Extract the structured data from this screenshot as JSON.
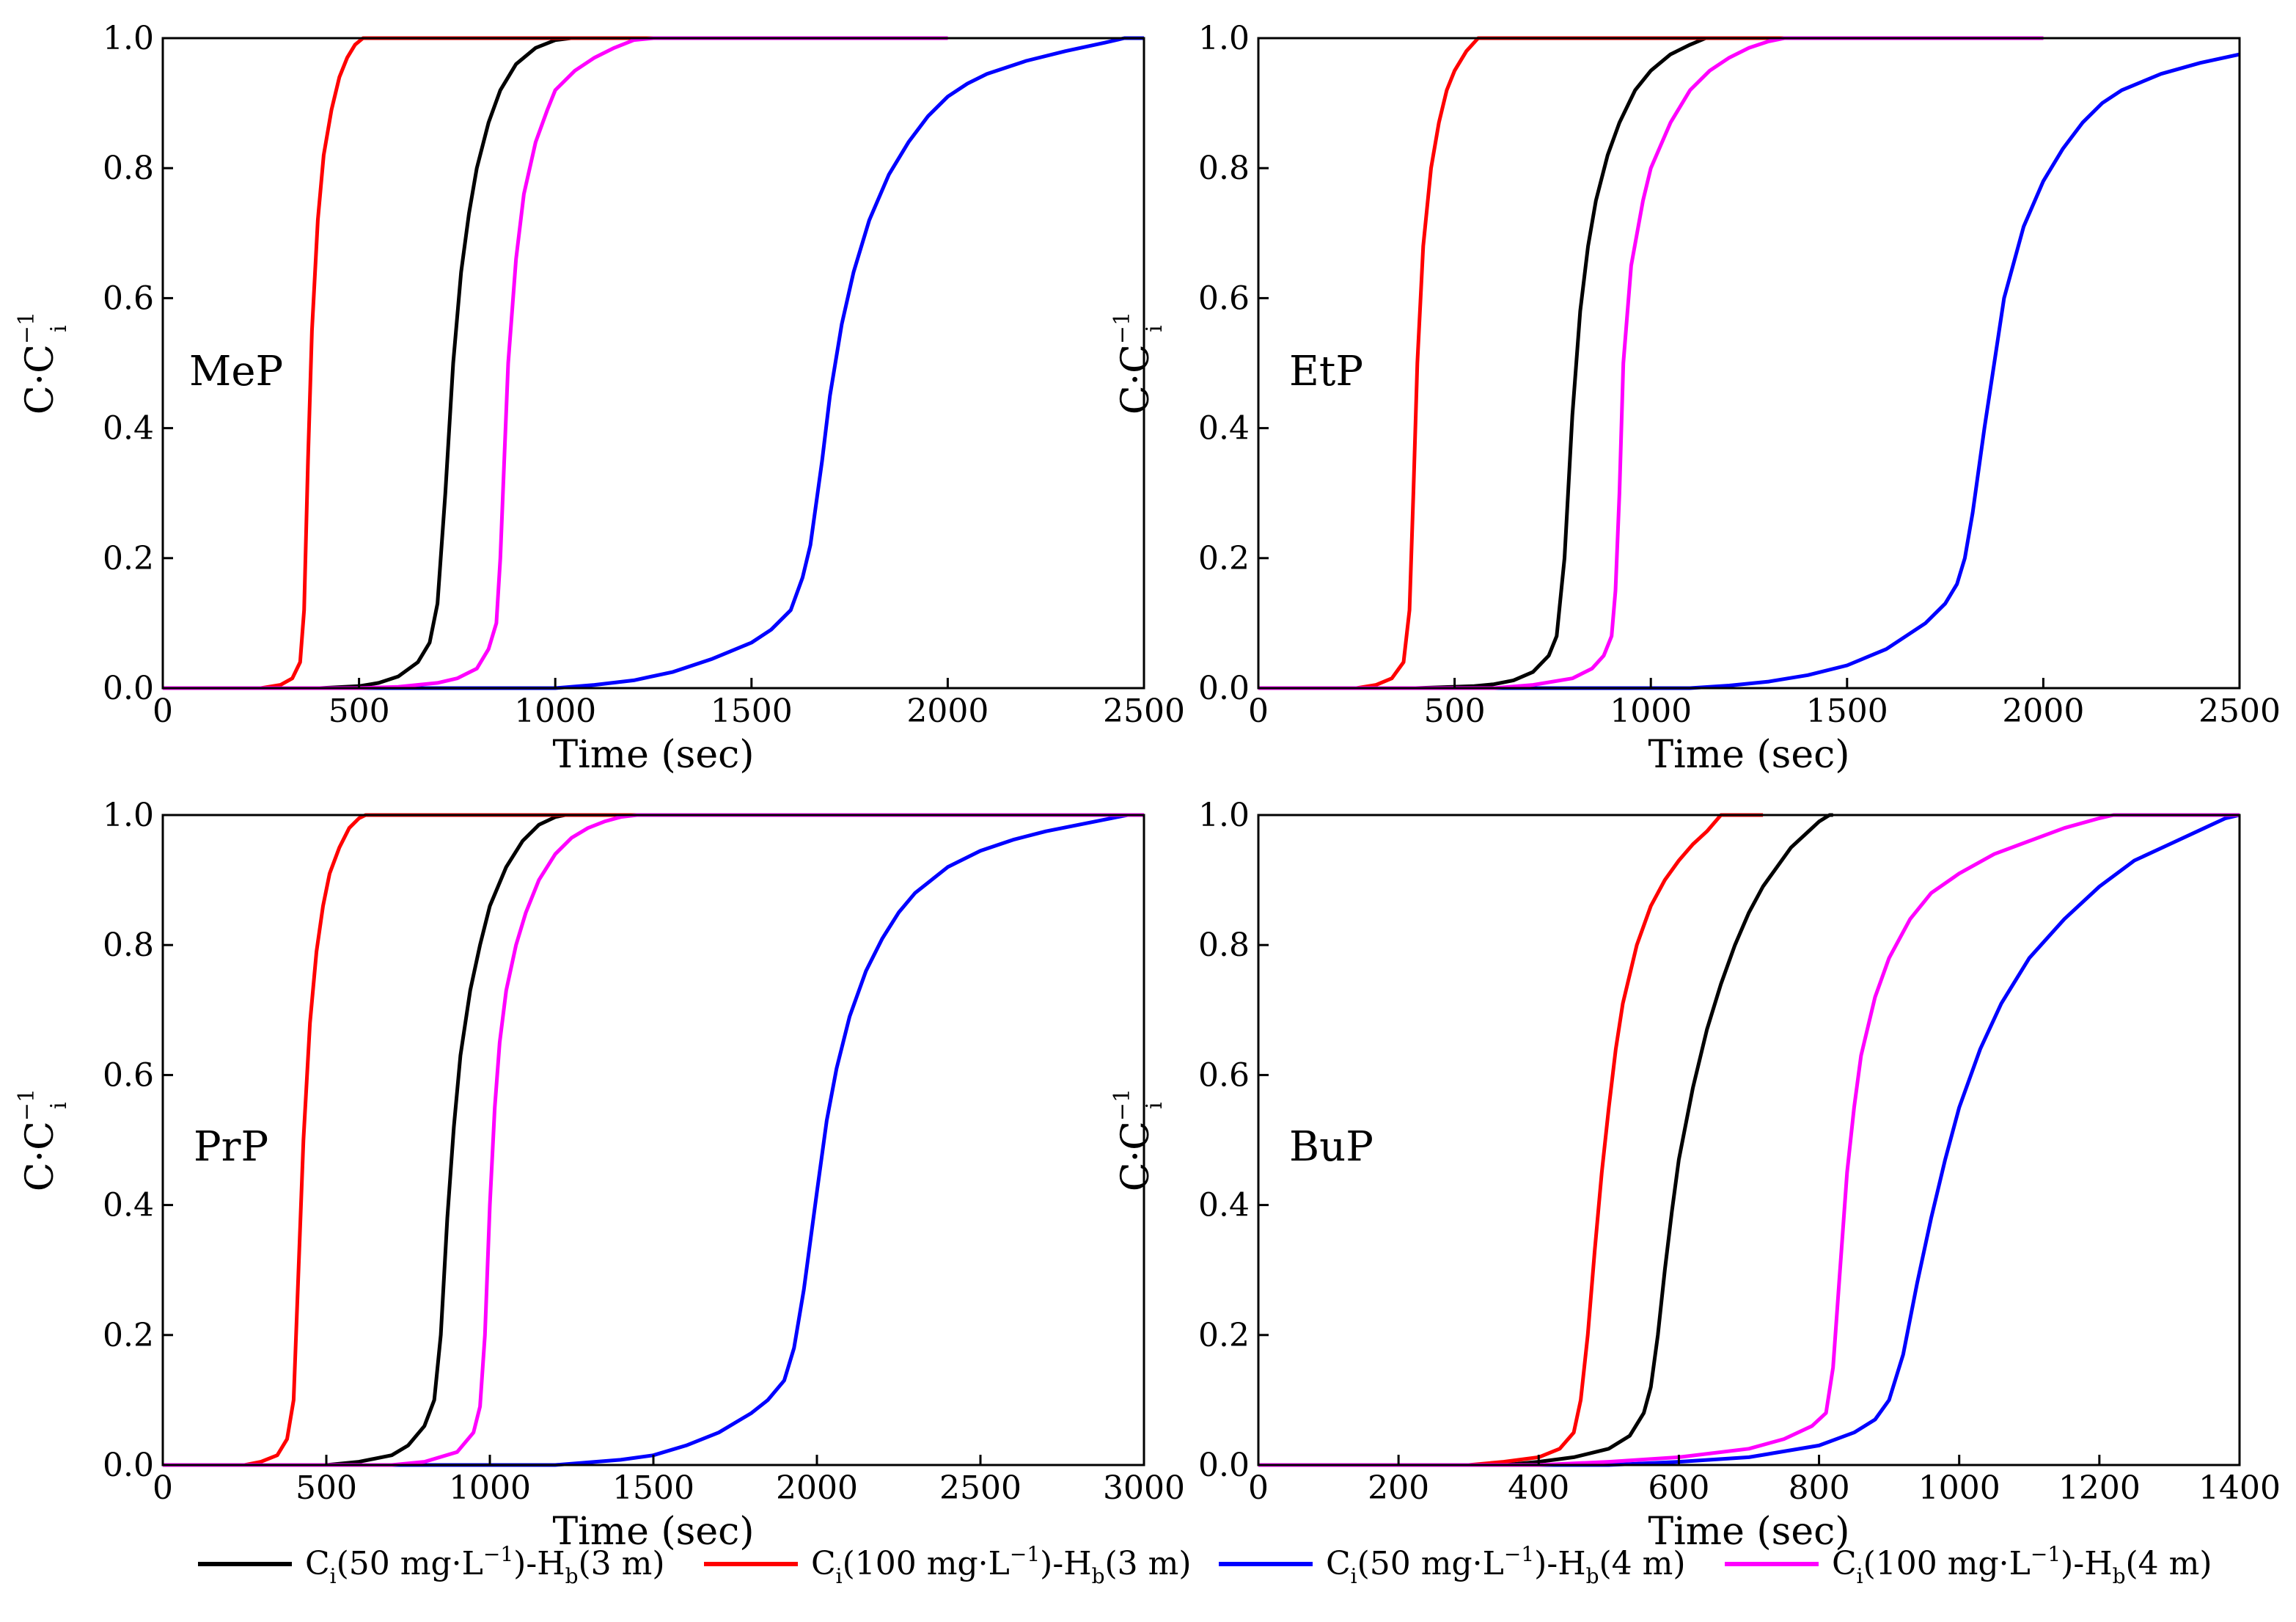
{
  "figure": {
    "colors": {
      "ci50_hb3": "#000000",
      "ci100_hb3": "#ff0000",
      "ci50_hb4": "#0000ff",
      "ci100_hb4": "#ff00ff"
    }
  },
  "chart_data": [
    {
      "type": "line",
      "panel_label": "MeP",
      "xlabel": "Time (sec)",
      "ylabel": "C·C_i^-1",
      "xlim": [
        0,
        2500
      ],
      "ylim": [
        0.0,
        1.0
      ],
      "xticks": [
        0,
        500,
        1000,
        1500,
        2000,
        2500
      ],
      "yticks": [
        "0.0",
        "0.2",
        "0.4",
        "0.6",
        "0.8",
        "1.0"
      ],
      "grid": false,
      "series": [
        {
          "name": "Ci(50 mg·L⁻¹)-Hb(3 m)",
          "color": "#000000",
          "x": [
            0,
            400,
            500,
            550,
            600,
            650,
            680,
            700,
            720,
            740,
            760,
            780,
            800,
            830,
            860,
            900,
            950,
            1000,
            1040,
            1100
          ],
          "y": [
            0,
            0,
            0.003,
            0.008,
            0.018,
            0.04,
            0.07,
            0.13,
            0.3,
            0.5,
            0.64,
            0.73,
            0.8,
            0.87,
            0.92,
            0.96,
            0.985,
            0.997,
            1,
            1
          ]
        },
        {
          "name": "Ci(100 mg·L⁻¹)-Hb(3 m)",
          "color": "#ff0000",
          "x": [
            0,
            250,
            300,
            330,
            350,
            360,
            370,
            380,
            395,
            410,
            430,
            450,
            470,
            490,
            510,
            520,
            2000
          ],
          "y": [
            0,
            0,
            0.005,
            0.015,
            0.04,
            0.12,
            0.35,
            0.55,
            0.72,
            0.82,
            0.89,
            0.94,
            0.97,
            0.99,
            1,
            1,
            1
          ]
        },
        {
          "name": "Ci(50 mg·L⁻¹)-Hb(4 m)",
          "color": "#0000ff",
          "x": [
            0,
            1000,
            1100,
            1200,
            1300,
            1400,
            1500,
            1550,
            1600,
            1630,
            1650,
            1680,
            1700,
            1730,
            1760,
            1800,
            1850,
            1900,
            1950,
            2000,
            2050,
            2100,
            2150,
            2200,
            2300,
            2400,
            2450,
            2500
          ],
          "y": [
            0,
            0,
            0.005,
            0.012,
            0.025,
            0.045,
            0.07,
            0.09,
            0.12,
            0.17,
            0.22,
            0.35,
            0.45,
            0.56,
            0.64,
            0.72,
            0.79,
            0.84,
            0.88,
            0.91,
            0.93,
            0.945,
            0.955,
            0.965,
            0.98,
            0.993,
            1,
            1
          ]
        },
        {
          "name": "Ci(100 mg·L⁻¹)-Hb(4 m)",
          "color": "#ff00ff",
          "x": [
            0,
            500,
            600,
            700,
            750,
            800,
            830,
            850,
            860,
            870,
            880,
            900,
            920,
            950,
            980,
            1000,
            1050,
            1100,
            1150,
            1200,
            1250,
            2000
          ],
          "y": [
            0,
            0,
            0.002,
            0.008,
            0.015,
            0.03,
            0.06,
            0.1,
            0.2,
            0.35,
            0.5,
            0.66,
            0.76,
            0.84,
            0.89,
            0.92,
            0.95,
            0.97,
            0.985,
            0.997,
            1,
            1
          ]
        }
      ]
    },
    {
      "type": "line",
      "panel_label": "EtP",
      "xlabel": "Time (sec)",
      "ylabel": "C·C_i^-1",
      "xlim": [
        0,
        2500
      ],
      "ylim": [
        0.0,
        1.0
      ],
      "xticks": [
        0,
        500,
        1000,
        1500,
        2000,
        2500
      ],
      "yticks": [
        "0.0",
        "0.2",
        "0.4",
        "0.6",
        "0.8",
        "1.0"
      ],
      "grid": false,
      "series": [
        {
          "name": "Ci(50 mg·L⁻¹)-Hb(3 m)",
          "color": "#000000",
          "x": [
            0,
            400,
            550,
            600,
            650,
            700,
            740,
            760,
            780,
            800,
            820,
            840,
            860,
            890,
            920,
            960,
            1000,
            1050,
            1100,
            1140,
            1200
          ],
          "y": [
            0,
            0,
            0.003,
            0.006,
            0.012,
            0.025,
            0.05,
            0.08,
            0.2,
            0.42,
            0.58,
            0.68,
            0.75,
            0.82,
            0.87,
            0.92,
            0.95,
            0.975,
            0.99,
            1,
            1
          ]
        },
        {
          "name": "Ci(100 mg·L⁻¹)-Hb(3 m)",
          "color": "#ff0000",
          "x": [
            0,
            250,
            300,
            340,
            370,
            385,
            395,
            405,
            420,
            440,
            460,
            480,
            500,
            530,
            560,
            570,
            2000
          ],
          "y": [
            0,
            0,
            0.005,
            0.015,
            0.04,
            0.12,
            0.3,
            0.5,
            0.68,
            0.8,
            0.87,
            0.92,
            0.95,
            0.98,
            1,
            1,
            1
          ]
        },
        {
          "name": "Ci(50 mg·L⁻¹)-Hb(4 m)",
          "color": "#0000ff",
          "x": [
            0,
            1100,
            1200,
            1300,
            1400,
            1500,
            1600,
            1700,
            1750,
            1780,
            1800,
            1820,
            1850,
            1880,
            1900,
            1950,
            2000,
            2050,
            2100,
            2150,
            2200,
            2300,
            2400,
            2500
          ],
          "y": [
            0,
            0,
            0.004,
            0.01,
            0.02,
            0.035,
            0.06,
            0.1,
            0.13,
            0.16,
            0.2,
            0.27,
            0.4,
            0.52,
            0.6,
            0.71,
            0.78,
            0.83,
            0.87,
            0.9,
            0.92,
            0.945,
            0.962,
            0.975
          ]
        },
        {
          "name": "Ci(100 mg·L⁻¹)-Hb(4 m)",
          "color": "#ff00ff",
          "x": [
            0,
            600,
            700,
            800,
            850,
            880,
            900,
            910,
            920,
            930,
            950,
            980,
            1000,
            1050,
            1100,
            1150,
            1200,
            1250,
            1300,
            1340,
            2000
          ],
          "y": [
            0,
            0,
            0.005,
            0.015,
            0.03,
            0.05,
            0.08,
            0.15,
            0.3,
            0.5,
            0.65,
            0.75,
            0.8,
            0.87,
            0.92,
            0.95,
            0.97,
            0.985,
            0.995,
            1,
            1
          ]
        }
      ]
    },
    {
      "type": "line",
      "panel_label": "PrP",
      "xlabel": "Time (sec)",
      "ylabel": "C·C_i^-1",
      "xlim": [
        0,
        3000
      ],
      "ylim": [
        0.0,
        1.0
      ],
      "xticks": [
        0,
        500,
        1000,
        1500,
        2000,
        2500,
        3000
      ],
      "yticks": [
        "0.0",
        "0.2",
        "0.4",
        "0.6",
        "0.8",
        "1.0"
      ],
      "grid": false,
      "series": [
        {
          "name": "Ci(50 mg·L⁻¹)-Hb(3 m)",
          "color": "#000000",
          "x": [
            0,
            500,
            600,
            700,
            750,
            800,
            830,
            850,
            870,
            890,
            910,
            940,
            970,
            1000,
            1050,
            1100,
            1150,
            1200,
            1230,
            1300
          ],
          "y": [
            0,
            0,
            0.005,
            0.015,
            0.03,
            0.06,
            0.1,
            0.2,
            0.38,
            0.52,
            0.63,
            0.73,
            0.8,
            0.86,
            0.92,
            0.96,
            0.985,
            0.997,
            1,
            1
          ]
        },
        {
          "name": "Ci(100 mg·L⁻¹)-Hb(3 m)",
          "color": "#ff0000",
          "x": [
            0,
            250,
            300,
            350,
            380,
            400,
            415,
            430,
            450,
            470,
            490,
            510,
            540,
            570,
            600,
            620,
            3000
          ],
          "y": [
            0,
            0,
            0.005,
            0.015,
            0.04,
            0.1,
            0.3,
            0.5,
            0.68,
            0.79,
            0.86,
            0.91,
            0.95,
            0.98,
            0.995,
            1,
            1
          ]
        },
        {
          "name": "Ci(50 mg·L⁻¹)-Hb(4 m)",
          "color": "#0000ff",
          "x": [
            0,
            1200,
            1400,
            1500,
            1600,
            1700,
            1800,
            1850,
            1900,
            1930,
            1960,
            2000,
            2030,
            2060,
            2100,
            2150,
            2200,
            2250,
            2300,
            2400,
            2500,
            2600,
            2700,
            2800,
            2900,
            2950,
            3000
          ],
          "y": [
            0,
            0,
            0.008,
            0.015,
            0.03,
            0.05,
            0.08,
            0.1,
            0.13,
            0.18,
            0.27,
            0.42,
            0.53,
            0.61,
            0.69,
            0.76,
            0.81,
            0.85,
            0.88,
            0.92,
            0.945,
            0.962,
            0.975,
            0.985,
            0.995,
            1,
            1
          ]
        },
        {
          "name": "Ci(100 mg·L⁻¹)-Hb(4 m)",
          "color": "#ff00ff",
          "x": [
            0,
            700,
            800,
            900,
            950,
            970,
            985,
            1000,
            1015,
            1030,
            1050,
            1080,
            1110,
            1150,
            1200,
            1250,
            1300,
            1350,
            1400,
            1450,
            3000
          ],
          "y": [
            0,
            0,
            0.005,
            0.02,
            0.05,
            0.09,
            0.2,
            0.4,
            0.55,
            0.65,
            0.73,
            0.8,
            0.85,
            0.9,
            0.94,
            0.965,
            0.98,
            0.99,
            0.997,
            1,
            1
          ]
        }
      ]
    },
    {
      "type": "line",
      "panel_label": "BuP",
      "xlabel": "Time (sec)",
      "ylabel": "C·C_i^-1",
      "xlim": [
        0,
        1400
      ],
      "ylim": [
        0.0,
        1.0
      ],
      "xticks": [
        0,
        200,
        400,
        600,
        800,
        1000,
        1200,
        1400
      ],
      "yticks": [
        "0.0",
        "0.2",
        "0.4",
        "0.6",
        "0.8",
        "1.0"
      ],
      "grid": false,
      "series": [
        {
          "name": "Ci(50 mg·L⁻¹)-Hb(3 m)",
          "color": "#000000",
          "x": [
            0,
            350,
            400,
            450,
            500,
            530,
            550,
            560,
            570,
            580,
            590,
            600,
            620,
            640,
            660,
            680,
            700,
            720,
            740,
            760,
            780,
            800,
            815,
            820
          ],
          "y": [
            0,
            0,
            0.005,
            0.012,
            0.025,
            0.045,
            0.08,
            0.12,
            0.2,
            0.3,
            0.39,
            0.47,
            0.58,
            0.67,
            0.74,
            0.8,
            0.85,
            0.89,
            0.92,
            0.95,
            0.97,
            0.99,
            1,
            1
          ]
        },
        {
          "name": "Ci(100 mg·L⁻¹)-Hb(3 m)",
          "color": "#ff0000",
          "x": [
            0,
            300,
            350,
            400,
            430,
            450,
            460,
            470,
            480,
            490,
            500,
            510,
            520,
            540,
            560,
            580,
            600,
            620,
            640,
            660,
            720
          ],
          "y": [
            0,
            0,
            0.005,
            0.012,
            0.025,
            0.05,
            0.1,
            0.2,
            0.33,
            0.45,
            0.55,
            0.64,
            0.71,
            0.8,
            0.86,
            0.9,
            0.93,
            0.955,
            0.975,
            1,
            1
          ]
        },
        {
          "name": "Ci(50 mg·L⁻¹)-Hb(4 m)",
          "color": "#0000ff",
          "x": [
            0,
            500,
            600,
            700,
            800,
            850,
            880,
            900,
            920,
            940,
            960,
            980,
            1000,
            1030,
            1060,
            1100,
            1150,
            1200,
            1250,
            1300,
            1350,
            1380,
            1400
          ],
          "y": [
            0,
            0,
            0.005,
            0.012,
            0.03,
            0.05,
            0.07,
            0.1,
            0.17,
            0.28,
            0.38,
            0.47,
            0.55,
            0.64,
            0.71,
            0.78,
            0.84,
            0.89,
            0.93,
            0.955,
            0.98,
            0.995,
            1
          ]
        },
        {
          "name": "Ci(100 mg·L⁻¹)-Hb(4 m)",
          "color": "#ff00ff",
          "x": [
            0,
            400,
            500,
            600,
            700,
            750,
            790,
            810,
            820,
            830,
            840,
            850,
            860,
            880,
            900,
            930,
            960,
            1000,
            1050,
            1100,
            1150,
            1200,
            1220,
            1400
          ],
          "y": [
            0,
            0,
            0.005,
            0.012,
            0.025,
            0.04,
            0.06,
            0.08,
            0.15,
            0.3,
            0.45,
            0.55,
            0.63,
            0.72,
            0.78,
            0.84,
            0.88,
            0.91,
            0.94,
            0.96,
            0.98,
            0.995,
            1,
            1
          ]
        }
      ]
    }
  ],
  "legend": {
    "items": [
      {
        "series_index": 0,
        "color": "#000000",
        "c": "C",
        "c_sub": "i",
        "conc": "(50 mg·L",
        "conc_sup": "−1",
        "after": ")-H",
        "h_sub": "b",
        "hb": "(3 m)"
      },
      {
        "series_index": 1,
        "color": "#ff0000",
        "c": "C",
        "c_sub": "i",
        "conc": "(100 mg·L",
        "conc_sup": "−1",
        "after": ")-H",
        "h_sub": "b",
        "hb": "(3 m)"
      },
      {
        "series_index": 2,
        "color": "#0000ff",
        "c": "C",
        "c_sub": "i",
        "conc": "(50 mg·L",
        "conc_sup": "−1",
        "after": ")-H",
        "h_sub": "b",
        "hb": "(4 m)"
      },
      {
        "series_index": 3,
        "color": "#ff00ff",
        "c": "C",
        "c_sub": "i",
        "conc": "(100 mg·L",
        "conc_sup": "−1",
        "after": ")-H",
        "h_sub": "b",
        "hb": "(4 m)"
      }
    ]
  }
}
